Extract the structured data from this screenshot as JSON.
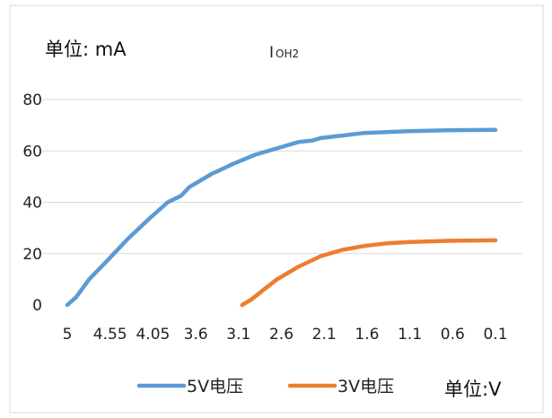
{
  "chart_data": {
    "type": "line",
    "title": {
      "main": "I",
      "sub": "OH2"
    },
    "y_unit_label": "单位: mA",
    "x_unit_label": "单位:V",
    "categories": [
      "5",
      "4.55",
      "4.05",
      "3.6",
      "3.1",
      "2.6",
      "2.1",
      "1.6",
      "1.1",
      "0.6",
      "0.1"
    ],
    "x_axis_reversed": true,
    "xlim": [
      5,
      0.1
    ],
    "ylim": [
      0,
      80
    ],
    "y_ticks": [
      0,
      20,
      40,
      60,
      80
    ],
    "grid": true,
    "legend_position": "bottom",
    "series": [
      {
        "name": "5V电压",
        "color": "#5b9bd5",
        "points": [
          [
            5.0,
            0
          ],
          [
            4.9,
            3
          ],
          [
            4.75,
            10
          ],
          [
            4.55,
            17
          ],
          [
            4.3,
            26
          ],
          [
            4.05,
            34
          ],
          [
            3.85,
            40
          ],
          [
            3.7,
            42.5
          ],
          [
            3.6,
            46
          ],
          [
            3.35,
            51
          ],
          [
            3.1,
            55
          ],
          [
            2.85,
            58.5
          ],
          [
            2.6,
            61
          ],
          [
            2.35,
            63.5
          ],
          [
            2.2,
            64
          ],
          [
            2.1,
            65
          ],
          [
            1.85,
            66
          ],
          [
            1.6,
            67
          ],
          [
            1.1,
            67.7
          ],
          [
            0.6,
            68.1
          ],
          [
            0.1,
            68.2
          ]
        ]
      },
      {
        "name": "3V电压",
        "color": "#ed7d31",
        "points": [
          [
            3.0,
            0
          ],
          [
            2.9,
            2
          ],
          [
            2.75,
            6
          ],
          [
            2.6,
            10
          ],
          [
            2.35,
            15
          ],
          [
            2.1,
            19
          ],
          [
            1.85,
            21.5
          ],
          [
            1.6,
            23
          ],
          [
            1.35,
            24
          ],
          [
            1.1,
            24.5
          ],
          [
            0.6,
            25
          ],
          [
            0.1,
            25.2
          ]
        ]
      }
    ]
  }
}
